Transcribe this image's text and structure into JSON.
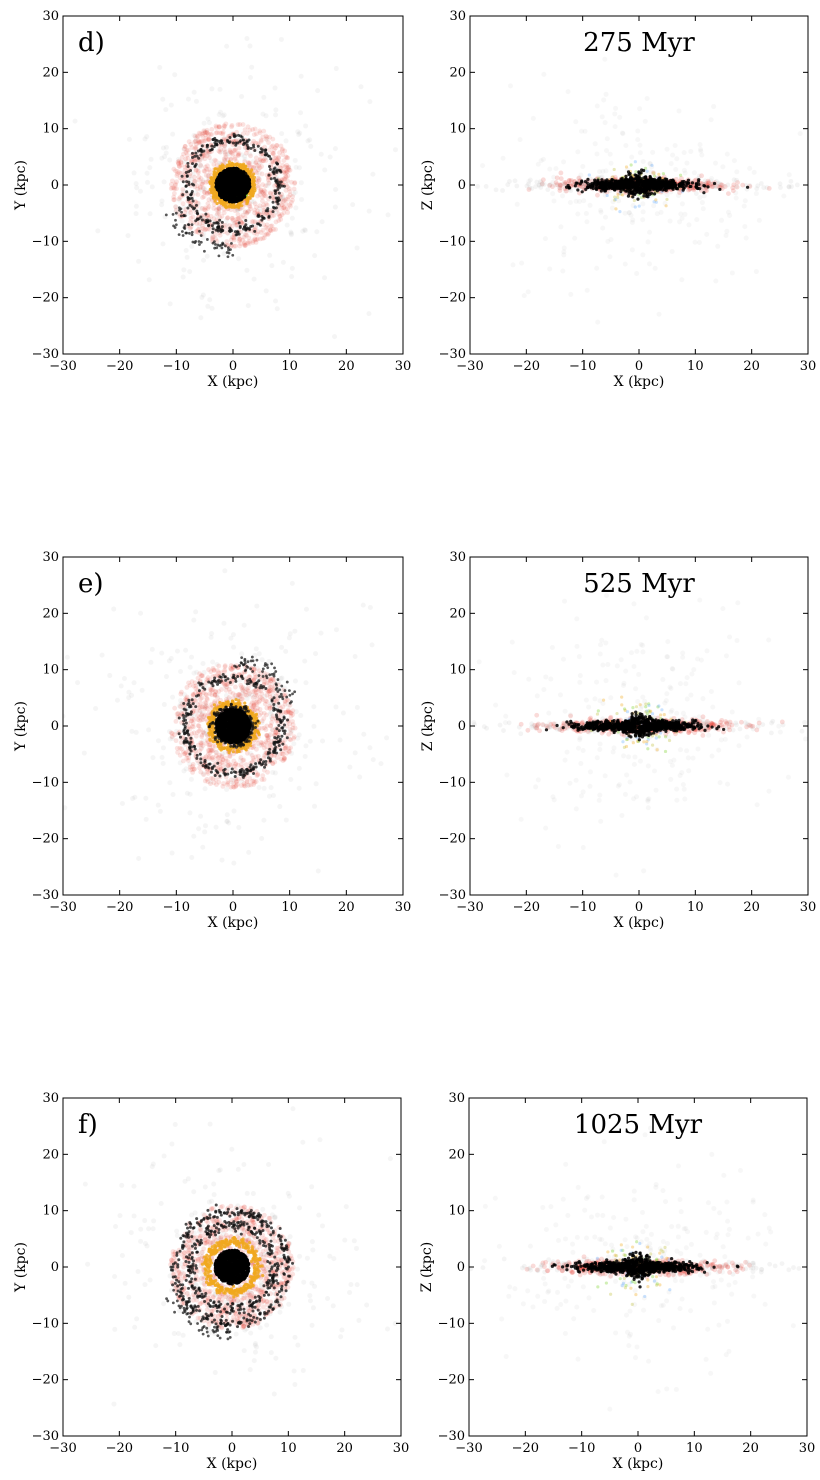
{
  "chart_data": [
    {
      "type": "scatter",
      "panel_label": "d)",
      "title": "",
      "xlabel": "X (kpc)",
      "ylabel": "Y (kpc)",
      "xlim": [
        -30,
        30
      ],
      "ylim": [
        -30,
        30
      ],
      "xticks": [
        "−30",
        "−20",
        "−10",
        "0",
        "10",
        "20",
        "30"
      ],
      "yticks": [
        "30",
        "20",
        "10",
        "0",
        "−10",
        "−20",
        "−30"
      ],
      "view": "face-on",
      "grid": false,
      "rings": [
        {
          "color": "#f0a81e",
          "radius": 3.5
        },
        {
          "color": "#111111",
          "radius": 8.0
        },
        {
          "color": "#7bd12a",
          "radius": 2.0
        }
      ],
      "halo_color": "#e63a2a",
      "halo_radius": 11
    },
    {
      "type": "scatter",
      "panel_label": "",
      "title": "275 Myr",
      "xlabel": "X (kpc)",
      "ylabel": "Z (kpc)",
      "xlim": [
        -30,
        30
      ],
      "ylim": [
        -30,
        30
      ],
      "xticks": [
        "−30",
        "−20",
        "−10",
        "0",
        "10",
        "20",
        "30"
      ],
      "yticks": [
        "30",
        "20",
        "10",
        "0",
        "−10",
        "−20",
        "−30"
      ],
      "view": "edge-on",
      "grid": false,
      "disk_extent": 10,
      "halo_color": "#e63a2a"
    },
    {
      "type": "scatter",
      "panel_label": "e)",
      "title": "",
      "xlabel": "X (kpc)",
      "ylabel": "Y (kpc)",
      "xlim": [
        -30,
        30
      ],
      "ylim": [
        -30,
        30
      ],
      "xticks": [
        "−30",
        "−20",
        "−10",
        "0",
        "10",
        "20",
        "30"
      ],
      "yticks": [
        "30",
        "20",
        "10",
        "0",
        "−10",
        "−20",
        "−30"
      ],
      "view": "face-on",
      "grid": false,
      "rings": [
        {
          "color": "#f0a81e",
          "radius": 4.0
        },
        {
          "color": "#111111",
          "radius": 8.5
        },
        {
          "color": "#111111",
          "radius": 3.0
        }
      ],
      "halo_color": "#e63a2a",
      "halo_radius": 11
    },
    {
      "type": "scatter",
      "panel_label": "",
      "title": "525 Myr",
      "xlabel": "X (kpc)",
      "ylabel": "Z (kpc)",
      "xlim": [
        -30,
        30
      ],
      "ylim": [
        -30,
        30
      ],
      "xticks": [
        "−30",
        "−20",
        "−10",
        "0",
        "10",
        "20",
        "30"
      ],
      "yticks": [
        "30",
        "20",
        "10",
        "0",
        "−10",
        "−20",
        "−30"
      ],
      "view": "edge-on",
      "grid": false,
      "disk_extent": 11,
      "halo_color": "#e63a2a"
    },
    {
      "type": "scatter",
      "panel_label": "f)",
      "title": "",
      "xlabel": "X (kpc)",
      "ylabel": "Y (kpc)",
      "xlim": [
        -30,
        30
      ],
      "ylim": [
        -30,
        30
      ],
      "xticks": [
        "−30",
        "−20",
        "−10",
        "0",
        "10",
        "20",
        "30"
      ],
      "yticks": [
        "30",
        "20",
        "10",
        "0",
        "−10",
        "−20",
        "−30"
      ],
      "view": "face-on",
      "grid": false,
      "rings": [
        {
          "color": "#f0a81e",
          "radius": 4.5
        },
        {
          "color": "#111111",
          "radius": 7.5
        },
        {
          "color": "#111111",
          "radius": 10.0
        }
      ],
      "halo_color": "#e63a2a",
      "halo_radius": 11
    },
    {
      "type": "scatter",
      "panel_label": "",
      "title": "1025 Myr",
      "xlabel": "X (kpc)",
      "ylabel": "Z (kpc)",
      "xlim": [
        -30,
        30
      ],
      "ylim": [
        -30,
        30
      ],
      "xticks": [
        "−30",
        "−20",
        "−10",
        "0",
        "10",
        "20",
        "30"
      ],
      "yticks": [
        "30",
        "20",
        "10",
        "0",
        "−10",
        "−20",
        "−30"
      ],
      "view": "edge-on",
      "grid": false,
      "disk_extent": 11,
      "halo_color": "#e63a2a"
    }
  ]
}
